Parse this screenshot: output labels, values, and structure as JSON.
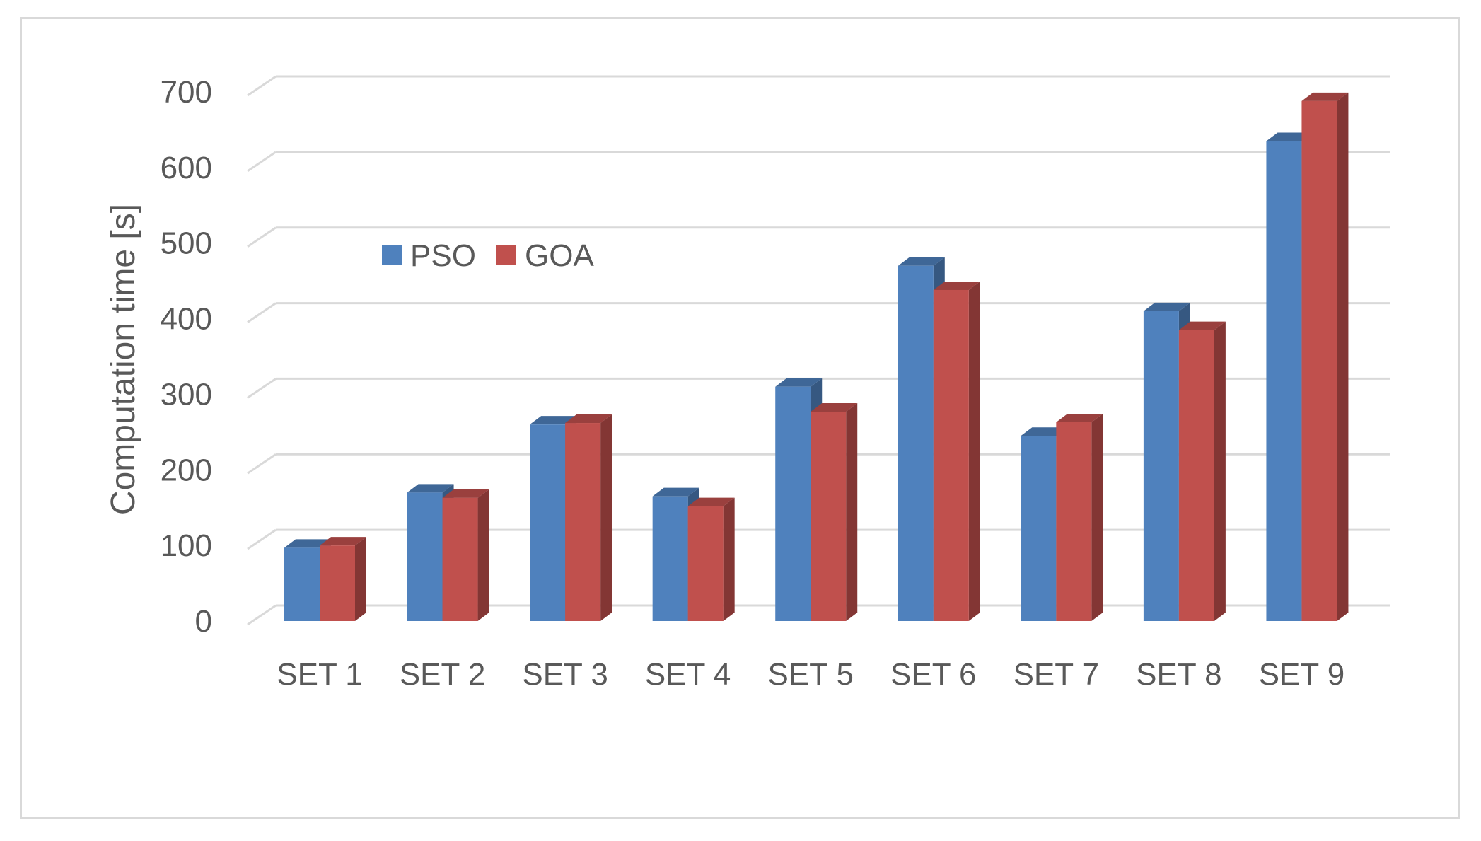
{
  "chart_data": {
    "type": "bar",
    "categories": [
      "SET 1",
      "SET 2",
      "SET 3",
      "SET 4",
      "SET 5",
      "SET 6",
      "SET 7",
      "SET 8",
      "SET 9"
    ],
    "series": [
      {
        "name": "PSO",
        "values": [
          97,
          170,
          260,
          165,
          310,
          470,
          245,
          410,
          635
        ],
        "color": "#4f81bd"
      },
      {
        "name": "GOA",
        "values": [
          100,
          163,
          262,
          152,
          277,
          438,
          263,
          385,
          688
        ],
        "color": "#c0504d"
      }
    ],
    "title": "",
    "xlabel": "",
    "ylabel": "Computation time [s]",
    "ylim": [
      0,
      700
    ],
    "yticks": [
      0,
      100,
      200,
      300,
      400,
      500,
      600,
      700
    ],
    "grid": true,
    "legend_position": "top-left",
    "style": "3d-clustered-column"
  }
}
